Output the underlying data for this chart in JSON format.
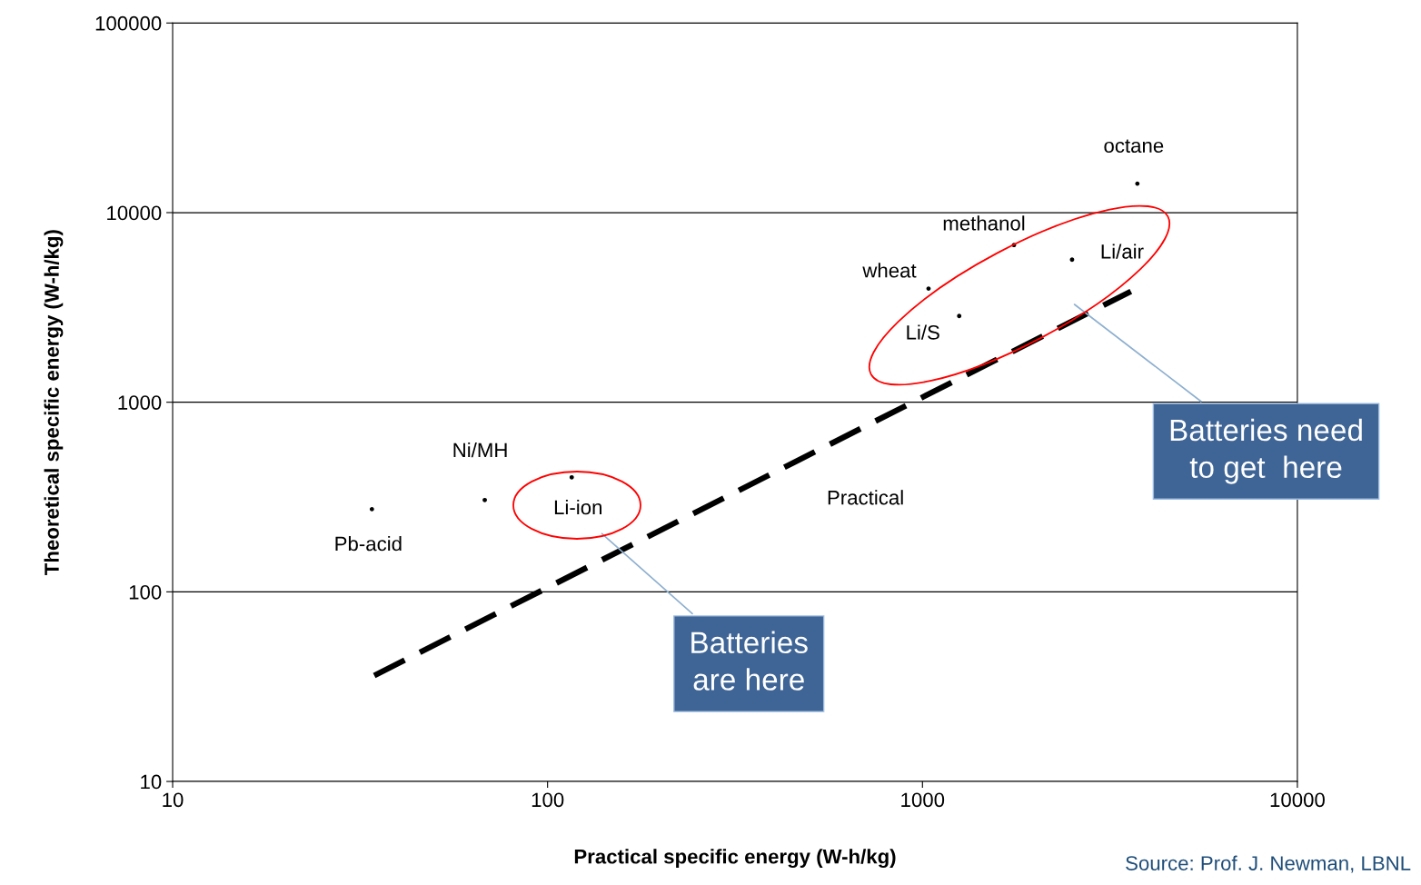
{
  "chart_data": {
    "type": "scatter",
    "xlabel": "Practical specific energy (W-h/kg)",
    "ylabel": "Theoretical specific energy (W-h/kg)",
    "log": "xy",
    "grid": "y",
    "legend": false,
    "marker": "circle",
    "xlim": [
      10,
      10000
    ],
    "xticks": [
      10,
      100,
      1000,
      10000
    ],
    "ylim": [
      10,
      100000
    ],
    "yticks": [
      10,
      100,
      1000,
      10000,
      100000
    ],
    "series": [
      {
        "color": "#000000",
        "x": [
          34,
          68,
          116,
          1038,
          1253,
          1754,
          2506,
          3743
        ],
        "values": [
          273,
          305,
          402,
          3975,
          2851,
          6745,
          5650,
          14220
        ]
      },
      {
        "type": "line",
        "color": "#000000",
        "line_style": "dashed",
        "marker": "none",
        "x": [
          34.5,
          3597
        ],
        "values": [
          36.2,
          3840
        ]
      }
    ],
    "annotations": [
      {
        "text": "Pb-acid",
        "x": 34,
        "y": 273
      },
      {
        "text": "Ni/MH",
        "x": 68,
        "y": 305
      },
      {
        "text": "Li-ion",
        "x": 116,
        "y": 402
      },
      {
        "text": "wheat",
        "x": 1038,
        "y": 3975
      },
      {
        "text": "Li/S",
        "x": 1253,
        "y": 2851
      },
      {
        "text": "methanol",
        "x": 1754,
        "y": 6745
      },
      {
        "text": "Li/air",
        "x": 2506,
        "y": 5650
      },
      {
        "text": "octane",
        "x": 3743,
        "y": 14220
      },
      "Practical",
      "Batteries need\nto get  here",
      "Batteries\nare here",
      "Source: Prof. J. Newman, LBNL"
    ]
  }
}
